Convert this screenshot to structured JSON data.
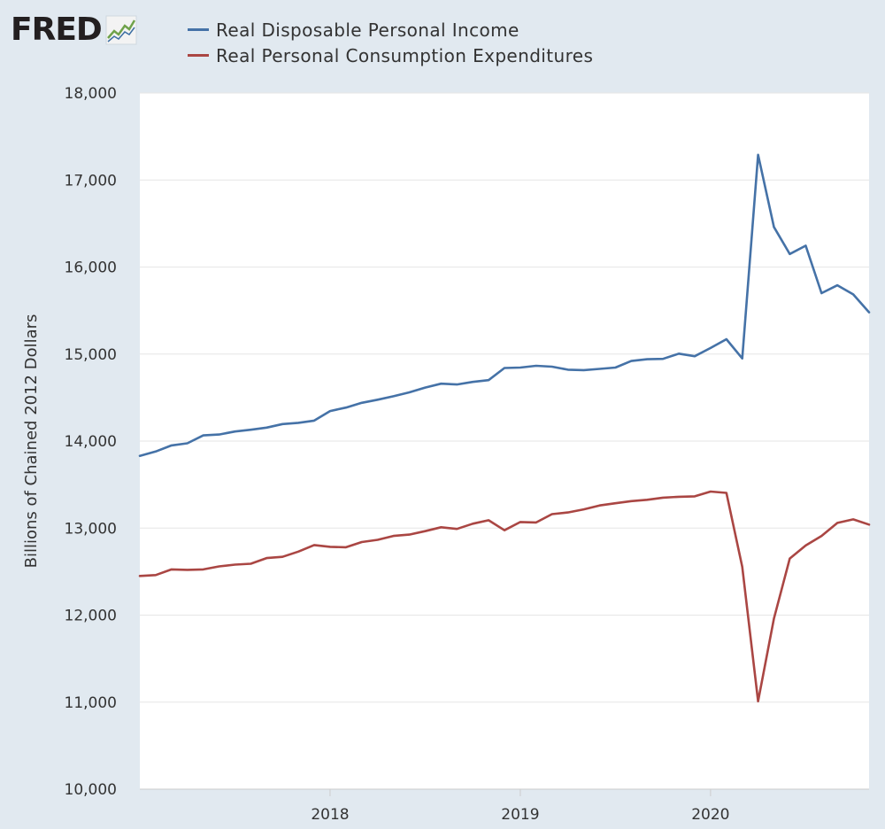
{
  "brand": {
    "logo_text": "FRED"
  },
  "colors": {
    "background": "#e1e9f0",
    "plot_bg": "#ffffff",
    "grid": "#e6e6e6",
    "series_1": "#4572a7",
    "series_2": "#aa4643"
  },
  "chart_data": {
    "type": "line",
    "title": "",
    "xlabel": "",
    "ylabel": "Billions of Chained 2012 Dollars",
    "ylim": [
      10000,
      18000
    ],
    "xlim": [
      2017.0,
      2020.8333
    ],
    "yticks": [
      10000,
      11000,
      12000,
      13000,
      14000,
      15000,
      16000,
      17000,
      18000
    ],
    "ytick_labels": [
      "10,000",
      "11,000",
      "12,000",
      "13,000",
      "14,000",
      "15,000",
      "16,000",
      "17,000",
      "18,000"
    ],
    "xticks": [
      2018,
      2019,
      2020
    ],
    "xtick_labels": [
      "2018",
      "2019",
      "2020"
    ],
    "grid": true,
    "legend_position": "top",
    "start": "2017-01",
    "frequency": "monthly",
    "series": [
      {
        "name": "Real Disposable Personal Income",
        "color": "#4572a7",
        "values": [
          13830,
          13880,
          13950,
          13975,
          14065,
          14075,
          14110,
          14130,
          14155,
          14195,
          14210,
          14235,
          14345,
          14385,
          14440,
          14475,
          14515,
          14560,
          14615,
          14660,
          14650,
          14680,
          14700,
          14840,
          14845,
          14865,
          14855,
          14820,
          14815,
          14830,
          14845,
          14920,
          14940,
          14945,
          15005,
          14975,
          15070,
          15170,
          14950,
          17290,
          16460,
          16150,
          16245,
          15700,
          15790,
          15685,
          15480
        ]
      },
      {
        "name": "Real Personal Consumption Expenditures",
        "color": "#aa4643",
        "values": [
          12450,
          12460,
          12525,
          12520,
          12525,
          12560,
          12580,
          12590,
          12655,
          12670,
          12730,
          12805,
          12785,
          12780,
          12840,
          12865,
          12910,
          12925,
          12965,
          13010,
          12990,
          13050,
          13090,
          12975,
          13070,
          13065,
          13160,
          13180,
          13215,
          13260,
          13285,
          13310,
          13325,
          13350,
          13360,
          13365,
          13420,
          13405,
          12555,
          11010,
          11960,
          12650,
          12800,
          12910,
          13060,
          13100,
          13040
        ]
      }
    ]
  }
}
